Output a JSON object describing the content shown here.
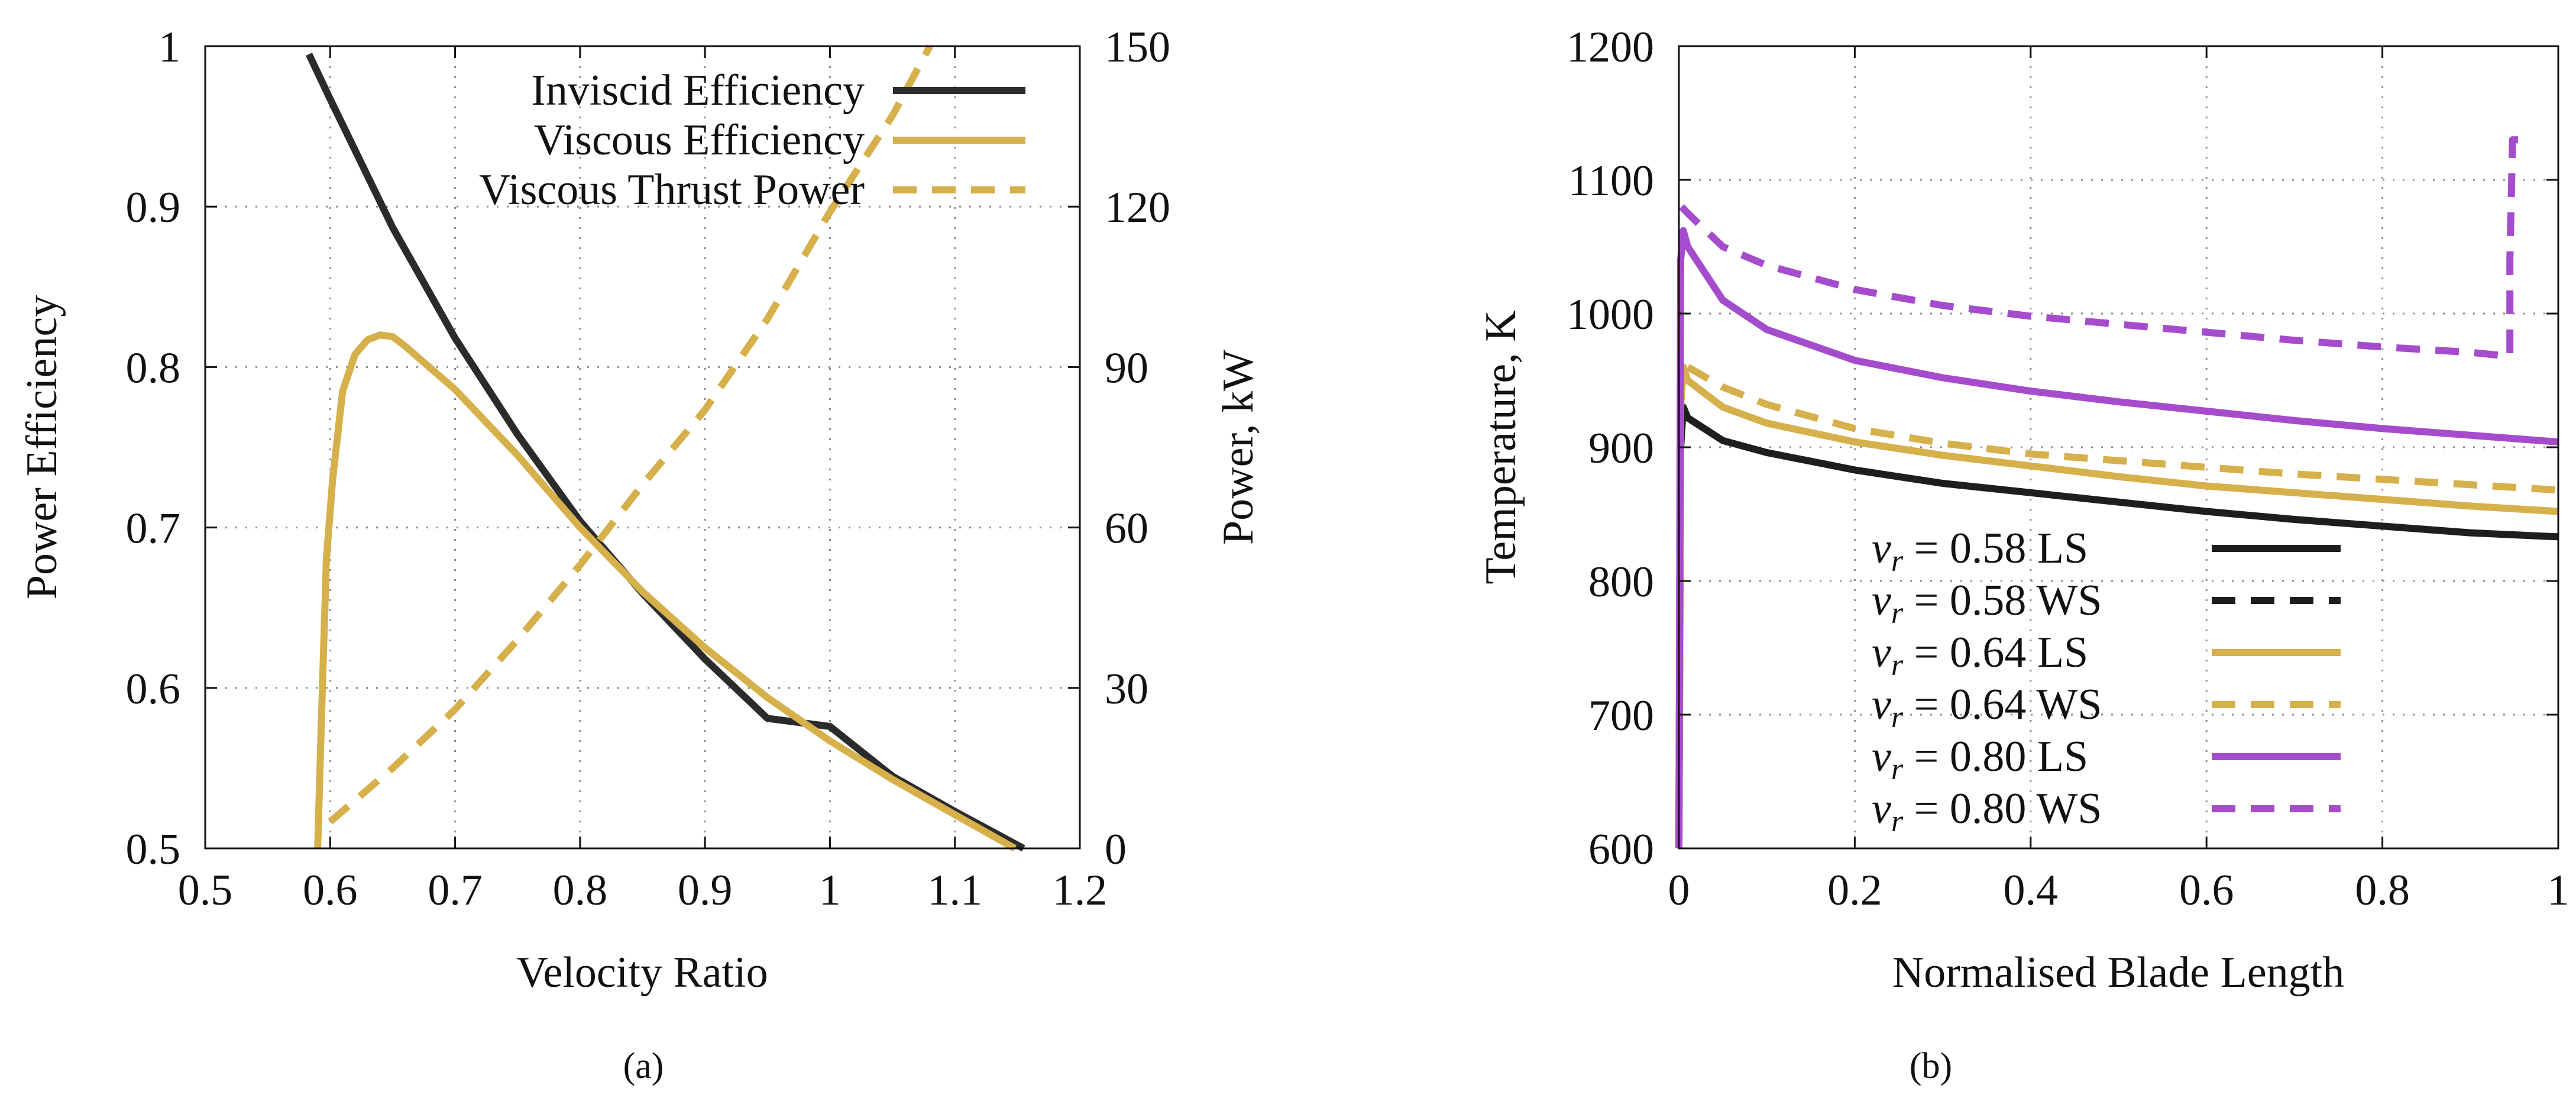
{
  "colors": {
    "inviscid": "#2b2b2b",
    "viscous": "#d6b04a",
    "v058": "#1e1e1e",
    "v064": "#d6b04a",
    "v080": "#a54ccc"
  },
  "captions": {
    "a": "(a)",
    "b": "(b)"
  },
  "chart_data": [
    {
      "id": "a",
      "type": "line",
      "xlabel": "Velocity Ratio",
      "ylabel": "Power Efficiency",
      "y2label": "Power, kW",
      "xlim": [
        0.5,
        1.2
      ],
      "ylim": [
        0.5,
        1.0
      ],
      "y2lim": [
        0,
        150
      ],
      "xticks": [
        0.5,
        0.6,
        0.7,
        0.8,
        0.9,
        1.0,
        1.1,
        1.2
      ],
      "xtick_labels": [
        "0.5",
        "0.6",
        "0.7",
        "0.8",
        "0.9",
        "1",
        "1.1",
        "1.2"
      ],
      "yticks": [
        0.5,
        0.6,
        0.7,
        0.8,
        0.9,
        1.0
      ],
      "ytick_labels": [
        "0.5",
        "0.6",
        "0.7",
        "0.8",
        "0.9",
        "1"
      ],
      "y2ticks": [
        0,
        30,
        60,
        90,
        120,
        150
      ],
      "y2tick_labels": [
        "0",
        "30",
        "60",
        "90",
        "120",
        "150"
      ],
      "grid": true,
      "legend_position": "top-right",
      "series": [
        {
          "name": "Inviscid Efficiency",
          "axis": "y",
          "color": "inviscid",
          "style": "solid",
          "x": [
            0.583,
            0.6,
            0.65,
            0.7,
            0.75,
            0.8,
            0.85,
            0.9,
            0.95,
            1.0,
            1.05,
            1.1,
            1.155
          ],
          "y": [
            0.995,
            0.967,
            0.887,
            0.818,
            0.758,
            0.704,
            0.659,
            0.618,
            0.581,
            0.576,
            0.545,
            0.523,
            0.5
          ]
        },
        {
          "name": "Viscous Efficiency",
          "axis": "y",
          "color": "viscous",
          "style": "solid",
          "x": [
            0.59,
            0.593,
            0.597,
            0.602,
            0.61,
            0.62,
            0.63,
            0.64,
            0.65,
            0.66,
            0.7,
            0.75,
            0.8,
            0.85,
            0.9,
            0.95,
            1.0,
            1.05,
            1.1,
            1.148
          ],
          "y": [
            0.5,
            0.58,
            0.68,
            0.73,
            0.785,
            0.808,
            0.817,
            0.82,
            0.819,
            0.813,
            0.786,
            0.745,
            0.7,
            0.66,
            0.625,
            0.594,
            0.567,
            0.543,
            0.521,
            0.5
          ]
        },
        {
          "name": "Viscous Thrust Power",
          "axis": "y2",
          "color": "viscous",
          "style": "dashed",
          "x": [
            0.6,
            0.65,
            0.7,
            0.75,
            0.8,
            0.85,
            0.9,
            0.95,
            1.0,
            1.05,
            1.08
          ],
          "y": [
            5,
            15,
            26,
            39,
            53,
            68,
            82,
            99,
            119,
            137,
            150
          ]
        }
      ]
    },
    {
      "id": "b",
      "type": "line",
      "xlabel": "Normalised Blade Length",
      "ylabel": "Temperature, K",
      "xlim": [
        0,
        1
      ],
      "ylim": [
        600,
        1200
      ],
      "xticks": [
        0,
        0.2,
        0.4,
        0.6,
        0.8,
        1.0
      ],
      "xtick_labels": [
        "0",
        "0.2",
        "0.4",
        "0.6",
        "0.8",
        "1"
      ],
      "yticks": [
        600,
        700,
        800,
        900,
        1000,
        1100,
        1200
      ],
      "ytick_labels": [
        "600",
        "700",
        "800",
        "900",
        "1000",
        "1100",
        "1200"
      ],
      "grid": true,
      "legend_position": "bottom-left",
      "series": [
        {
          "name": "v_r = 0.58 LS",
          "label_value": "0.58",
          "label_suffix": "LS",
          "color": "v058",
          "style": "solid",
          "x": [
            0,
            0.002,
            0.005,
            0.01,
            0.05,
            0.1,
            0.2,
            0.3,
            0.4,
            0.5,
            0.6,
            0.7,
            0.8,
            0.9,
            1.0
          ],
          "y": [
            600,
            900,
            930,
            922,
            905,
            896,
            883,
            873,
            866,
            859,
            852,
            846,
            841,
            836,
            833
          ]
        },
        {
          "name": "v_r = 0.58 WS",
          "label_value": "0.58",
          "label_suffix": "WS",
          "color": "v058",
          "style": "dashed",
          "x": [],
          "y": []
        },
        {
          "name": "v_r = 0.64 LS",
          "label_value": "0.64",
          "label_suffix": "LS",
          "color": "v064",
          "style": "solid",
          "x": [
            0,
            0.002,
            0.005,
            0.01,
            0.05,
            0.1,
            0.2,
            0.3,
            0.4,
            0.5,
            0.6,
            0.7,
            0.8,
            0.9,
            1.0
          ],
          "y": [
            600,
            930,
            960,
            950,
            930,
            918,
            904,
            894,
            886,
            878,
            871,
            866,
            861,
            856,
            852
          ]
        },
        {
          "name": "v_r = 0.64 WS",
          "label_value": "0.64",
          "label_suffix": "WS",
          "color": "v064",
          "style": "dashed",
          "x": [
            0.01,
            0.05,
            0.1,
            0.2,
            0.3,
            0.4,
            0.5,
            0.6,
            0.7,
            0.8,
            0.9,
            1.0
          ],
          "y": [
            960,
            945,
            932,
            914,
            903,
            895,
            890,
            885,
            880,
            876,
            872,
            868
          ]
        },
        {
          "name": "v_r = 0.80 LS",
          "label_value": "0.80",
          "label_suffix": "LS",
          "color": "v080",
          "style": "solid",
          "x": [
            0,
            0.002,
            0.005,
            0.01,
            0.05,
            0.1,
            0.2,
            0.3,
            0.4,
            0.5,
            0.6,
            0.7,
            0.8,
            0.9,
            1.0
          ],
          "y": [
            600,
            1040,
            1062,
            1050,
            1010,
            988,
            965,
            952,
            942,
            934,
            927,
            920,
            914,
            909,
            904
          ]
        },
        {
          "name": "v_r = 0.80 WS",
          "label_value": "0.80",
          "label_suffix": "WS",
          "color": "v080",
          "style": "dashed",
          "x": [
            0.003,
            0.01,
            0.05,
            0.1,
            0.2,
            0.3,
            0.4,
            0.5,
            0.6,
            0.7,
            0.8,
            0.9,
            0.945,
            0.945,
            0.948,
            0.97
          ],
          "y": [
            1080,
            1075,
            1050,
            1036,
            1018,
            1006,
            998,
            992,
            986,
            980,
            975,
            971,
            968,
            1040,
            1130,
            1130
          ]
        }
      ]
    }
  ]
}
